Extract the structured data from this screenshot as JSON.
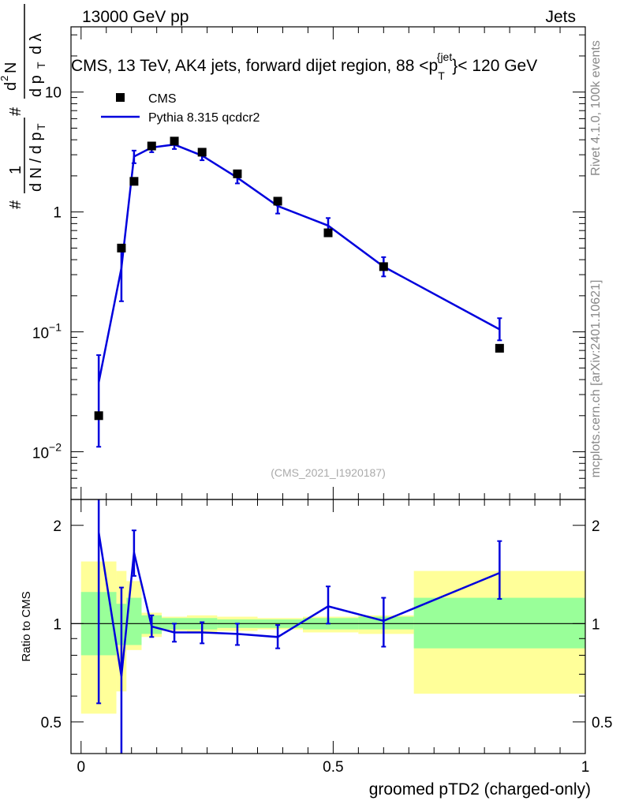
{
  "header": {
    "left": "13000 GeV pp",
    "right": "Jets"
  },
  "side_labels": {
    "rivet": "Rivet 4.1.0,  100k events",
    "mcplots": "mcplots.cern.ch [arXiv:2401.10621]"
  },
  "chart_data": [
    {
      "type": "scatter+line",
      "title": "CMS, 13 TeV, AK4 jets, forward dijet region, 88 <p_T^{jet}< 120 GeV",
      "title_parts": {
        "main": "CMS, 13 TeV, AK4 jets, forward dijet region, 88 <p",
        "sub": "T",
        "sup": "{jet",
        "tail": "}< 120 GeV"
      },
      "ylabel": "1/(dN/dp_T) d²N/(dp_T dλ)",
      "ylabel_parts": [
        "#",
        "1",
        "d N / d p",
        "T",
        "#",
        "d",
        "2",
        "N",
        "d p",
        "T",
        "d λ"
      ],
      "yscale": "log",
      "ylim": [
        0.004,
        35
      ],
      "y_ticks": [
        {
          "value": 0.01,
          "base": "10",
          "exp": "−2"
        },
        {
          "value": 0.1,
          "base": "10",
          "exp": "−1"
        },
        {
          "value": 1,
          "label": "1"
        },
        {
          "value": 10,
          "label": "10"
        }
      ],
      "watermark": "(CMS_2021_I1920187)",
      "legend": [
        {
          "label": "CMS",
          "marker": "square",
          "color": "#000000"
        },
        {
          "label": "Pythia 8.315 qcdcr2",
          "marker": "line",
          "color": "#0000dd"
        }
      ],
      "series": [
        {
          "name": "CMS",
          "x": [
            0.035,
            0.08,
            0.105,
            0.14,
            0.185,
            0.24,
            0.31,
            0.39,
            0.49,
            0.6,
            0.83
          ],
          "y": [
            0.02,
            0.5,
            1.8,
            3.55,
            3.9,
            3.15,
            2.08,
            1.23,
            0.67,
            0.35,
            0.073
          ]
        },
        {
          "name": "Pythia 8.315 qcdcr2",
          "x": [
            0.035,
            0.08,
            0.105,
            0.14,
            0.185,
            0.24,
            0.31,
            0.39,
            0.49,
            0.6,
            0.83
          ],
          "y": [
            0.038,
            0.34,
            2.9,
            3.45,
            3.65,
            2.95,
            1.93,
            1.12,
            0.77,
            0.35,
            0.105
          ],
          "err_up": [
            0.026,
            0.16,
            0.35,
            0.3,
            0.3,
            0.25,
            0.2,
            0.15,
            0.12,
            0.07,
            0.025
          ],
          "err_down": [
            0.027,
            0.16,
            0.35,
            0.3,
            0.3,
            0.25,
            0.2,
            0.15,
            0.12,
            0.06,
            0.02
          ]
        }
      ]
    },
    {
      "type": "ratio",
      "ylabel": "Ratio to CMS",
      "yscale": "log",
      "ylim": [
        0.4,
        2.4
      ],
      "y_ticks": [
        {
          "value": 0.5,
          "label": "0.5"
        },
        {
          "value": 1,
          "label": "1"
        },
        {
          "value": 2,
          "label": "2"
        }
      ],
      "xlabel": "groomed pTD2 (charged-only)",
      "xlim": [
        -0.02,
        1.0
      ],
      "x_ticks": [
        {
          "value": 0,
          "label": "0"
        },
        {
          "value": 0.5,
          "label": "0.5"
        },
        {
          "value": 1,
          "label": "1"
        }
      ],
      "bands": [
        {
          "x0": 0.0,
          "x1": 0.07,
          "green": [
            0.8,
            1.25
          ],
          "yellow": [
            0.53,
            1.55
          ]
        },
        {
          "x0": 0.07,
          "x1": 0.09,
          "green": [
            0.86,
            1.15
          ],
          "yellow": [
            0.62,
            1.45
          ]
        },
        {
          "x0": 0.09,
          "x1": 0.12,
          "green": [
            0.86,
            1.2
          ],
          "yellow": [
            0.83,
            1.35
          ]
        },
        {
          "x0": 0.12,
          "x1": 0.16,
          "green": [
            0.93,
            1.06
          ],
          "yellow": [
            0.91,
            1.08
          ]
        },
        {
          "x0": 0.16,
          "x1": 0.21,
          "green": [
            0.96,
            1.04
          ],
          "yellow": [
            0.95,
            1.05
          ]
        },
        {
          "x0": 0.21,
          "x1": 0.27,
          "green": [
            0.96,
            1.04
          ],
          "yellow": [
            0.94,
            1.06
          ]
        },
        {
          "x0": 0.27,
          "x1": 0.35,
          "green": [
            0.97,
            1.03
          ],
          "yellow": [
            0.95,
            1.05
          ]
        },
        {
          "x0": 0.35,
          "x1": 0.44,
          "green": [
            0.97,
            1.03
          ],
          "yellow": [
            0.96,
            1.04
          ]
        },
        {
          "x0": 0.44,
          "x1": 0.55,
          "green": [
            0.96,
            1.04
          ],
          "yellow": [
            0.94,
            1.05
          ]
        },
        {
          "x0": 0.55,
          "x1": 0.66,
          "green": [
            0.96,
            1.05
          ],
          "yellow": [
            0.93,
            1.06
          ]
        },
        {
          "x0": 0.66,
          "x1": 1.0,
          "green": [
            0.84,
            1.2
          ],
          "yellow": [
            0.61,
            1.45
          ]
        }
      ],
      "series": [
        {
          "name": "Pythia 8.315 qcdcr2 / CMS",
          "x": [
            0.035,
            0.08,
            0.105,
            0.14,
            0.185,
            0.24,
            0.31,
            0.39,
            0.49,
            0.6,
            0.83
          ],
          "y": [
            1.9,
            0.69,
            1.65,
            0.98,
            0.94,
            0.94,
            0.93,
            0.91,
            1.13,
            1.02,
            1.43
          ],
          "err_up": [
            1.0,
            0.6,
            0.28,
            0.08,
            0.06,
            0.07,
            0.07,
            0.08,
            0.17,
            0.18,
            0.36
          ],
          "err_down": [
            1.33,
            0.4,
            0.25,
            0.07,
            0.06,
            0.07,
            0.07,
            0.07,
            0.13,
            0.17,
            0.24
          ]
        }
      ]
    }
  ]
}
